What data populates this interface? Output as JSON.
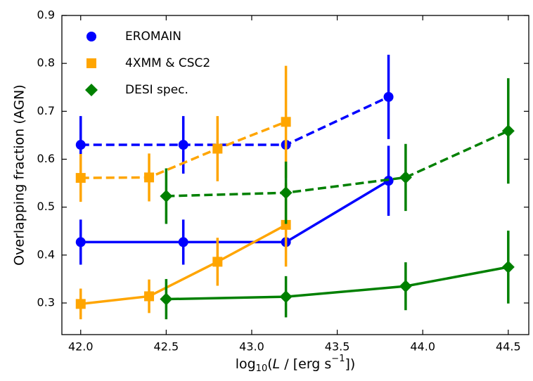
{
  "chart_data": {
    "type": "errorbar-line",
    "x_label": [
      "log",
      "10",
      "(",
      "L",
      " / [erg s",
      "−1",
      "])"
    ],
    "y_label": "Overlapping fraction (AGN)",
    "xlim": [
      41.89,
      44.62
    ],
    "ylim": [
      0.234,
      0.9
    ],
    "xticks": [
      {
        "value": 42,
        "label": "42.0"
      },
      42.5,
      {
        "value": 43,
        "label": "43.0"
      },
      43.5,
      {
        "value": 44,
        "label": "44.0"
      },
      44.5
    ],
    "yticks": [
      0.3,
      0.4,
      0.5,
      0.6,
      0.7,
      0.8,
      0.9
    ],
    "legend": "upper left",
    "series": [
      {
        "name": "EROMAIN",
        "color": "#0000ff",
        "marker": "circle",
        "lines": [
          {
            "style": "dashed",
            "x": [
              42.0,
              42.6,
              43.2,
              43.8
            ],
            "values": [
              0.63,
              0.63,
              0.63,
              0.73
            ],
            "errors": [
              0.06,
              0.06,
              0,
              0.088
            ]
          },
          {
            "style": "solid",
            "x": [
              42.0,
              42.6,
              43.2,
              43.8
            ],
            "values": [
              0.427,
              0.427,
              0.427,
              0.555
            ],
            "errors": [
              0.047,
              0.047,
              0,
              0.073
            ]
          }
        ]
      },
      {
        "name": "4XMM & CSC2",
        "color": "#ffa500",
        "marker": "square",
        "lines": [
          {
            "style": "dashed",
            "x": [
              42.0,
              42.4,
              42.8,
              43.2
            ],
            "values": [
              0.561,
              0.562,
              0.622,
              0.678
            ],
            "errors": [
              0.05,
              0.05,
              0.068,
              0.117
            ]
          },
          {
            "style": "solid",
            "x": [
              42.0,
              42.4,
              42.8,
              43.2
            ],
            "values": [
              0.298,
              0.314,
              0.386,
              0.463
            ],
            "errors": [
              0.032,
              0.035,
              0.05,
              0.087
            ]
          }
        ]
      },
      {
        "name": "DESI spec.",
        "color": "#008000",
        "marker": "diamond",
        "lines": [
          {
            "style": "dashed",
            "x": [
              42.5,
              43.2,
              43.9,
              44.5
            ],
            "values": [
              0.523,
              0.53,
              0.562,
              0.659
            ],
            "errors": [
              0.058,
              0.065,
              0.07,
              0.11
            ]
          },
          {
            "style": "solid",
            "x": [
              42.5,
              43.2,
              43.9,
              44.5
            ],
            "values": [
              0.308,
              0.313,
              0.335,
              0.375
            ],
            "errors": [
              0.042,
              0.043,
              0.05,
              0.076
            ]
          }
        ]
      }
    ]
  }
}
